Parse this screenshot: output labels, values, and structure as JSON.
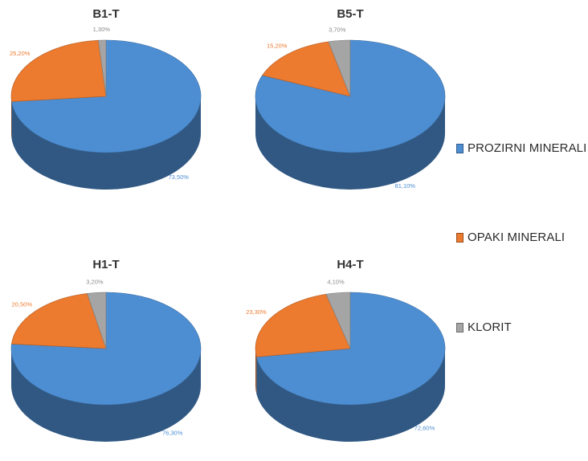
{
  "colors": {
    "prozirni": "#4d8ed3",
    "opaki": "#ec7a2f",
    "klorit": "#a5a5a5"
  },
  "legend": [
    {
      "name": "PROZIRNI MINERALI",
      "color": "#4d8ed3"
    },
    {
      "name": "OPAKI MINERALI",
      "color": "#ec7a2f"
    },
    {
      "name": "KLORIT",
      "color": "#a5a5a5"
    }
  ],
  "chart_data": [
    {
      "type": "pie",
      "title": "B1-T",
      "categories": [
        "PROZIRNI MINERALI",
        "OPAKI MINERALI",
        "KLORIT"
      ],
      "values": [
        73.5,
        25.2,
        1.3
      ],
      "labels": [
        "73,50%",
        "25,20%",
        "1,30%"
      ],
      "style": "3d",
      "legend_position": "right"
    },
    {
      "type": "pie",
      "title": "B5-T",
      "categories": [
        "PROZIRNI MINERALI",
        "OPAKI MINERALI",
        "KLORIT"
      ],
      "values": [
        81.1,
        15.2,
        3.7
      ],
      "labels": [
        "81,10%",
        "15,20%",
        "3,70%"
      ],
      "style": "3d",
      "legend_position": "right"
    },
    {
      "type": "pie",
      "title": "H1-T",
      "categories": [
        "PROZIRNI MINERALI",
        "OPAKI MINERALI",
        "KLORIT"
      ],
      "values": [
        76.3,
        20.5,
        3.2
      ],
      "labels": [
        "76,30%",
        "20,50%",
        "3,20%"
      ],
      "style": "3d",
      "legend_position": "right"
    },
    {
      "type": "pie",
      "title": "H4-T",
      "categories": [
        "PROZIRNI MINERALI",
        "OPAKI MINERALI",
        "KLORIT"
      ],
      "values": [
        72.6,
        23.3,
        4.1
      ],
      "labels": [
        "72,60%",
        "23,30%",
        "4,10%"
      ],
      "style": "3d",
      "legend_position": "right"
    }
  ]
}
